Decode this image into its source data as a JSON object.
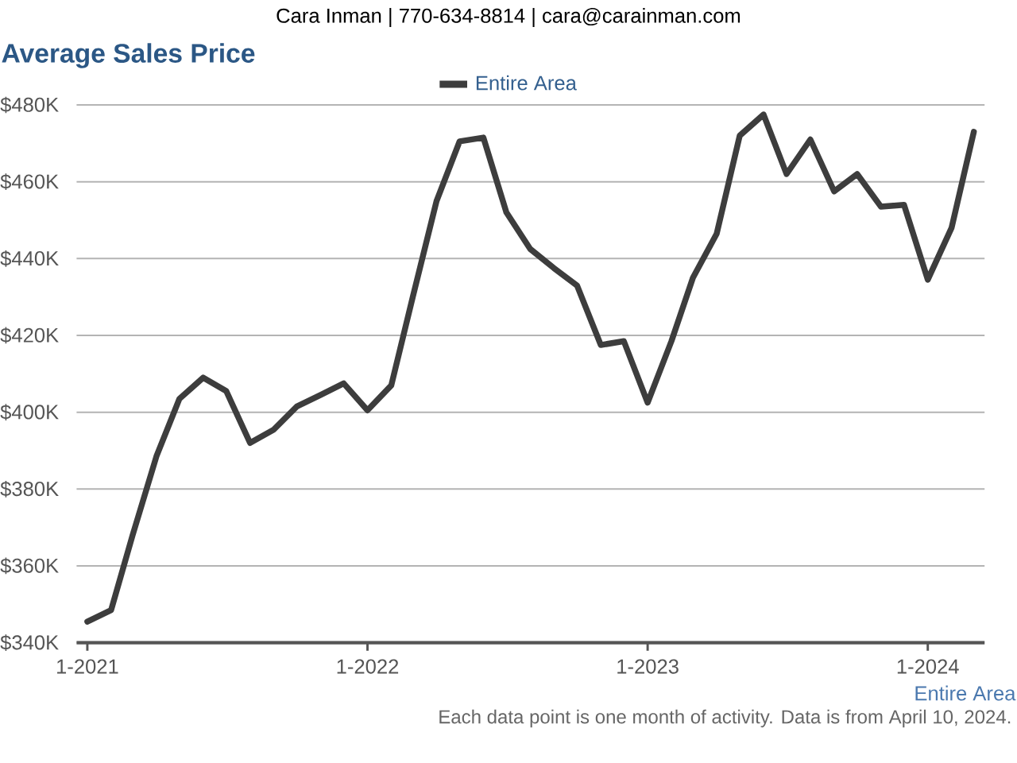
{
  "chart_data": {
    "type": "line",
    "title": "Average Sales Price",
    "annotations": [
      "Cara Inman | 770-634-8814 | cara@carainman.com",
      "Entire Area",
      "Each data point is one month of activity. Data is from April 10, 2024."
    ],
    "x": [
      "2021-01",
      "2021-02",
      "2021-03",
      "2021-04",
      "2021-05",
      "2021-06",
      "2021-07",
      "2021-08",
      "2021-09",
      "2021-10",
      "2021-11",
      "2021-12",
      "2022-01",
      "2022-02",
      "2022-03",
      "2022-04",
      "2022-05",
      "2022-06",
      "2022-07",
      "2022-08",
      "2022-09",
      "2022-10",
      "2022-11",
      "2022-12",
      "2023-01",
      "2023-02",
      "2023-03",
      "2023-04",
      "2023-05",
      "2023-06",
      "2023-07",
      "2023-08",
      "2023-09",
      "2023-10",
      "2023-11",
      "2023-12",
      "2024-01",
      "2024-02",
      "2024-03"
    ],
    "series": [
      {
        "name": "Entire Area",
        "color": "#3d3d3d",
        "values": [
          345500,
          348500,
          368000,
          388500,
          403500,
          409000,
          405500,
          392000,
          395500,
          401500,
          404500,
          407500,
          400500,
          407000,
          430000,
          455000,
          470500,
          471500,
          452000,
          442500,
          437500,
          433000,
          417500,
          418500,
          402500,
          418500,
          435000,
          446500,
          472000,
          477500,
          462000,
          471000,
          457500,
          462000,
          453500,
          454000,
          434500,
          448000,
          473000
        ]
      }
    ],
    "xlim": [
      "2020-12-18",
      "2024-03-15"
    ],
    "xticks": [
      {
        "value": "2021-01",
        "label": "1-2021"
      },
      {
        "value": "2022-01",
        "label": "1-2022"
      },
      {
        "value": "2023-01",
        "label": "1-2023"
      },
      {
        "value": "2024-01",
        "label": "1-2024"
      }
    ],
    "ylim": [
      340000,
      480000
    ],
    "yticks": [
      {
        "value": 340000,
        "label": "$340K"
      },
      {
        "value": 360000,
        "label": "$360K"
      },
      {
        "value": 380000,
        "label": "$380K"
      },
      {
        "value": 400000,
        "label": "$400K"
      },
      {
        "value": 420000,
        "label": "$420K"
      },
      {
        "value": 440000,
        "label": "$440K"
      },
      {
        "value": 460000,
        "label": "$460K"
      },
      {
        "value": 480000,
        "label": "$480K"
      }
    ],
    "grid": "y",
    "legend": "top",
    "marker": "none",
    "line_style": "solid"
  }
}
